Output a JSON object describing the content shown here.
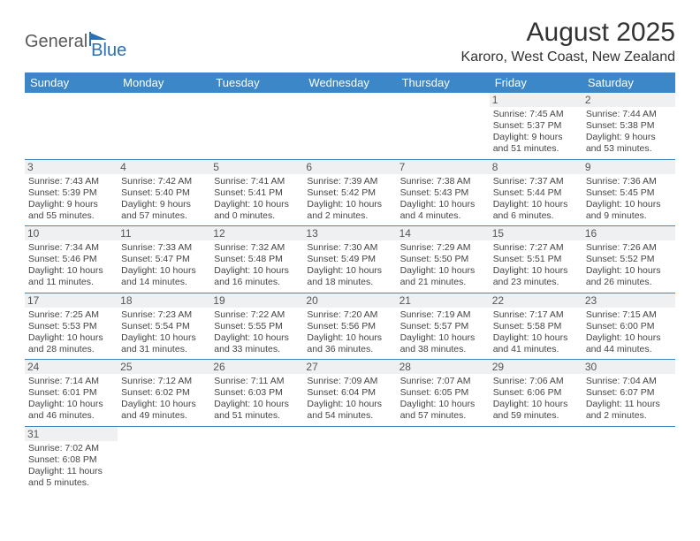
{
  "logo": {
    "part1": "General",
    "part2": "Blue"
  },
  "title": "August 2025",
  "location": "Karoro, West Coast, New Zealand",
  "header_bg": "#3b87c8",
  "header_text_color": "#ffffff",
  "daynum_bg": "#eef0f1",
  "border_color": "#3b87c8",
  "weekdays": [
    "Sunday",
    "Monday",
    "Tuesday",
    "Wednesday",
    "Thursday",
    "Friday",
    "Saturday"
  ],
  "weeks": [
    [
      null,
      null,
      null,
      null,
      null,
      {
        "n": 1,
        "sunrise": "7:45 AM",
        "sunset": "5:37 PM",
        "daylight": "9 hours and 51 minutes."
      },
      {
        "n": 2,
        "sunrise": "7:44 AM",
        "sunset": "5:38 PM",
        "daylight": "9 hours and 53 minutes."
      }
    ],
    [
      {
        "n": 3,
        "sunrise": "7:43 AM",
        "sunset": "5:39 PM",
        "daylight": "9 hours and 55 minutes."
      },
      {
        "n": 4,
        "sunrise": "7:42 AM",
        "sunset": "5:40 PM",
        "daylight": "9 hours and 57 minutes."
      },
      {
        "n": 5,
        "sunrise": "7:41 AM",
        "sunset": "5:41 PM",
        "daylight": "10 hours and 0 minutes."
      },
      {
        "n": 6,
        "sunrise": "7:39 AM",
        "sunset": "5:42 PM",
        "daylight": "10 hours and 2 minutes."
      },
      {
        "n": 7,
        "sunrise": "7:38 AM",
        "sunset": "5:43 PM",
        "daylight": "10 hours and 4 minutes."
      },
      {
        "n": 8,
        "sunrise": "7:37 AM",
        "sunset": "5:44 PM",
        "daylight": "10 hours and 6 minutes."
      },
      {
        "n": 9,
        "sunrise": "7:36 AM",
        "sunset": "5:45 PM",
        "daylight": "10 hours and 9 minutes."
      }
    ],
    [
      {
        "n": 10,
        "sunrise": "7:34 AM",
        "sunset": "5:46 PM",
        "daylight": "10 hours and 11 minutes."
      },
      {
        "n": 11,
        "sunrise": "7:33 AM",
        "sunset": "5:47 PM",
        "daylight": "10 hours and 14 minutes."
      },
      {
        "n": 12,
        "sunrise": "7:32 AM",
        "sunset": "5:48 PM",
        "daylight": "10 hours and 16 minutes."
      },
      {
        "n": 13,
        "sunrise": "7:30 AM",
        "sunset": "5:49 PM",
        "daylight": "10 hours and 18 minutes."
      },
      {
        "n": 14,
        "sunrise": "7:29 AM",
        "sunset": "5:50 PM",
        "daylight": "10 hours and 21 minutes."
      },
      {
        "n": 15,
        "sunrise": "7:27 AM",
        "sunset": "5:51 PM",
        "daylight": "10 hours and 23 minutes."
      },
      {
        "n": 16,
        "sunrise": "7:26 AM",
        "sunset": "5:52 PM",
        "daylight": "10 hours and 26 minutes."
      }
    ],
    [
      {
        "n": 17,
        "sunrise": "7:25 AM",
        "sunset": "5:53 PM",
        "daylight": "10 hours and 28 minutes."
      },
      {
        "n": 18,
        "sunrise": "7:23 AM",
        "sunset": "5:54 PM",
        "daylight": "10 hours and 31 minutes."
      },
      {
        "n": 19,
        "sunrise": "7:22 AM",
        "sunset": "5:55 PM",
        "daylight": "10 hours and 33 minutes."
      },
      {
        "n": 20,
        "sunrise": "7:20 AM",
        "sunset": "5:56 PM",
        "daylight": "10 hours and 36 minutes."
      },
      {
        "n": 21,
        "sunrise": "7:19 AM",
        "sunset": "5:57 PM",
        "daylight": "10 hours and 38 minutes."
      },
      {
        "n": 22,
        "sunrise": "7:17 AM",
        "sunset": "5:58 PM",
        "daylight": "10 hours and 41 minutes."
      },
      {
        "n": 23,
        "sunrise": "7:15 AM",
        "sunset": "6:00 PM",
        "daylight": "10 hours and 44 minutes."
      }
    ],
    [
      {
        "n": 24,
        "sunrise": "7:14 AM",
        "sunset": "6:01 PM",
        "daylight": "10 hours and 46 minutes."
      },
      {
        "n": 25,
        "sunrise": "7:12 AM",
        "sunset": "6:02 PM",
        "daylight": "10 hours and 49 minutes."
      },
      {
        "n": 26,
        "sunrise": "7:11 AM",
        "sunset": "6:03 PM",
        "daylight": "10 hours and 51 minutes."
      },
      {
        "n": 27,
        "sunrise": "7:09 AM",
        "sunset": "6:04 PM",
        "daylight": "10 hours and 54 minutes."
      },
      {
        "n": 28,
        "sunrise": "7:07 AM",
        "sunset": "6:05 PM",
        "daylight": "10 hours and 57 minutes."
      },
      {
        "n": 29,
        "sunrise": "7:06 AM",
        "sunset": "6:06 PM",
        "daylight": "10 hours and 59 minutes."
      },
      {
        "n": 30,
        "sunrise": "7:04 AM",
        "sunset": "6:07 PM",
        "daylight": "11 hours and 2 minutes."
      }
    ],
    [
      {
        "n": 31,
        "sunrise": "7:02 AM",
        "sunset": "6:08 PM",
        "daylight": "11 hours and 5 minutes."
      },
      null,
      null,
      null,
      null,
      null,
      null
    ]
  ],
  "labels": {
    "sunrise": "Sunrise:",
    "sunset": "Sunset:",
    "daylight": "Daylight:"
  }
}
